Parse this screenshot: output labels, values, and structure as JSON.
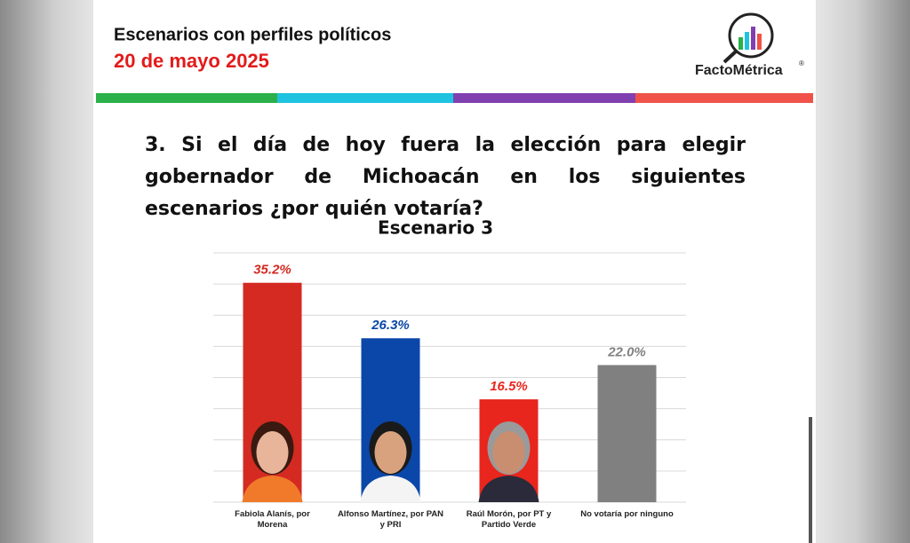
{
  "header": {
    "title": "Escenarios con perfiles políticos",
    "date": "20 de mayo 2025",
    "logo_text": "FactoMétrica",
    "logo_mark": "®"
  },
  "question": "3. Si el día de hoy fuera la elección para elegir gobernador de Michoacán en los siguientes escenarios ¿por quién votaría?",
  "chart_data": {
    "type": "bar",
    "title": "Escenario 3",
    "categories": [
      "Fabiola Alanís, por Morena",
      "Alfonso Martínez, por PAN y PRI",
      "Raúl Morón, por PT y Partido Verde",
      "No votaría por ninguno"
    ],
    "values": [
      35.2,
      26.3,
      16.5,
      22.0
    ],
    "value_labels": [
      "35.2%",
      "26.3%",
      "16.5%",
      "22.0%"
    ],
    "colors": [
      "#d42a22",
      "#0a47a8",
      "#e8261e",
      "#808080"
    ],
    "ylim": [
      0,
      40
    ],
    "yticks": [
      0,
      5,
      10,
      15,
      20,
      25,
      30,
      35,
      40
    ],
    "grid": true
  }
}
